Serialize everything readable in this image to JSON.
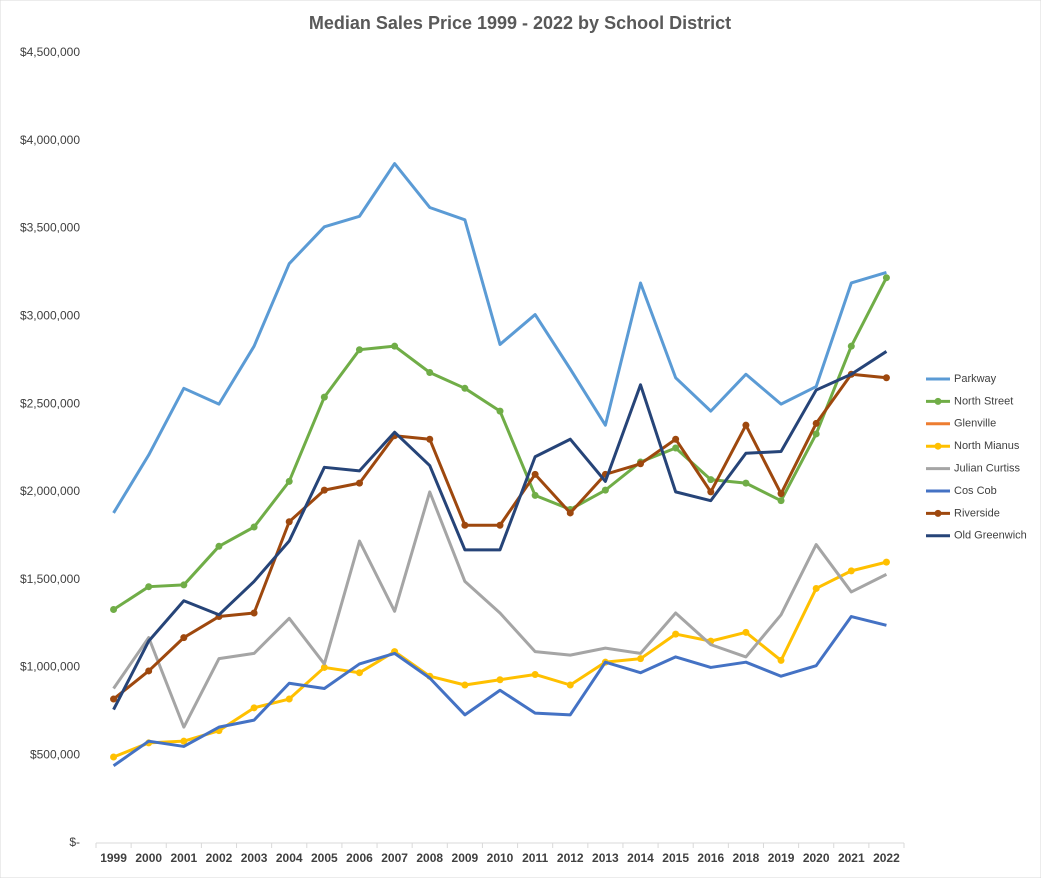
{
  "chart_data": {
    "type": "line",
    "title": "Median Sales Price 1999 - 2022 by School District",
    "categories": [
      "1999",
      "2000",
      "2001",
      "2002",
      "2003",
      "2004",
      "2005",
      "2006",
      "2007",
      "2008",
      "2009",
      "2010",
      "2011",
      "2012",
      "2013",
      "2014",
      "2015",
      "2016",
      "2018",
      "2019",
      "2020",
      "2021",
      "2022"
    ],
    "ylim": [
      0,
      4500000
    ],
    "yticks": [
      {
        "value": 0,
        "label": "$-"
      },
      {
        "value": 500000,
        "label": "$500,000"
      },
      {
        "value": 1000000,
        "label": "$1,000,000"
      },
      {
        "value": 1500000,
        "label": "$1,500,000"
      },
      {
        "value": 2000000,
        "label": "$2,000,000"
      },
      {
        "value": 2500000,
        "label": "$2,500,000"
      },
      {
        "value": 3000000,
        "label": "$3,000,000"
      },
      {
        "value": 3500000,
        "label": "$3,500,000"
      },
      {
        "value": 4000000,
        "label": "$4,000,000"
      },
      {
        "value": 4500000,
        "label": "$4,500,000"
      }
    ],
    "grid": false,
    "legend": "right",
    "series": [
      {
        "name": "Parkway",
        "color": "#5b9bd5",
        "markers": false,
        "values": [
          1880000,
          2210000,
          2590000,
          2500000,
          2830000,
          3300000,
          3510000,
          3570000,
          3870000,
          3620000,
          3550000,
          2840000,
          3010000,
          2700000,
          2380000,
          3190000,
          2650000,
          2460000,
          2670000,
          2500000,
          2600000,
          3190000,
          3250000
        ]
      },
      {
        "name": "North Street",
        "color": "#70ad47",
        "markers": true,
        "values": [
          1330000,
          1460000,
          1470000,
          1690000,
          1800000,
          2060000,
          2540000,
          2810000,
          2830000,
          2680000,
          2590000,
          2460000,
          1980000,
          1900000,
          2010000,
          2170000,
          2250000,
          2070000,
          2050000,
          1950000,
          2330000,
          2830000,
          3220000
        ]
      },
      {
        "name": "Glenville",
        "color": "#ed7d31",
        "markers": false,
        "values": [
          null,
          null,
          null,
          null,
          null,
          null,
          null,
          null,
          null,
          null,
          null,
          null,
          null,
          null,
          null,
          null,
          null,
          null,
          null,
          null,
          null,
          null,
          null
        ]
      },
      {
        "name": "North Mianus",
        "color": "#ffc000",
        "markers": true,
        "values": [
          490000,
          570000,
          580000,
          640000,
          770000,
          820000,
          1000000,
          970000,
          1090000,
          950000,
          900000,
          930000,
          960000,
          900000,
          1030000,
          1050000,
          1190000,
          1150000,
          1200000,
          1040000,
          1450000,
          1550000,
          1600000
        ]
      },
      {
        "name": "Julian Curtiss",
        "color": "#a5a5a5",
        "markers": false,
        "values": [
          880000,
          1170000,
          660000,
          1050000,
          1080000,
          1280000,
          1020000,
          1720000,
          1320000,
          2000000,
          1490000,
          1310000,
          1090000,
          1070000,
          1110000,
          1080000,
          1310000,
          1130000,
          1060000,
          1300000,
          1700000,
          1430000,
          1530000
        ]
      },
      {
        "name": "Cos Cob",
        "color": "#4472c4",
        "markers": false,
        "values": [
          440000,
          580000,
          550000,
          660000,
          700000,
          910000,
          880000,
          1020000,
          1080000,
          940000,
          730000,
          870000,
          740000,
          730000,
          1030000,
          970000,
          1060000,
          1000000,
          1030000,
          950000,
          1010000,
          1290000,
          1240000
        ]
      },
      {
        "name": "Riverside",
        "color": "#9e480e",
        "markers": true,
        "values": [
          820000,
          980000,
          1170000,
          1290000,
          1310000,
          1830000,
          2010000,
          2050000,
          2320000,
          2300000,
          1810000,
          1810000,
          2100000,
          1880000,
          2100000,
          2160000,
          2300000,
          2000000,
          2380000,
          1990000,
          2390000,
          2670000,
          2650000
        ]
      },
      {
        "name": "Old Greenwich",
        "color": "#264478",
        "markers": false,
        "values": [
          760000,
          1150000,
          1380000,
          1300000,
          1490000,
          1720000,
          2140000,
          2120000,
          2340000,
          2150000,
          1670000,
          1670000,
          2200000,
          2300000,
          2060000,
          2610000,
          2000000,
          1950000,
          2220000,
          2230000,
          2580000,
          2670000,
          2800000
        ]
      }
    ]
  }
}
